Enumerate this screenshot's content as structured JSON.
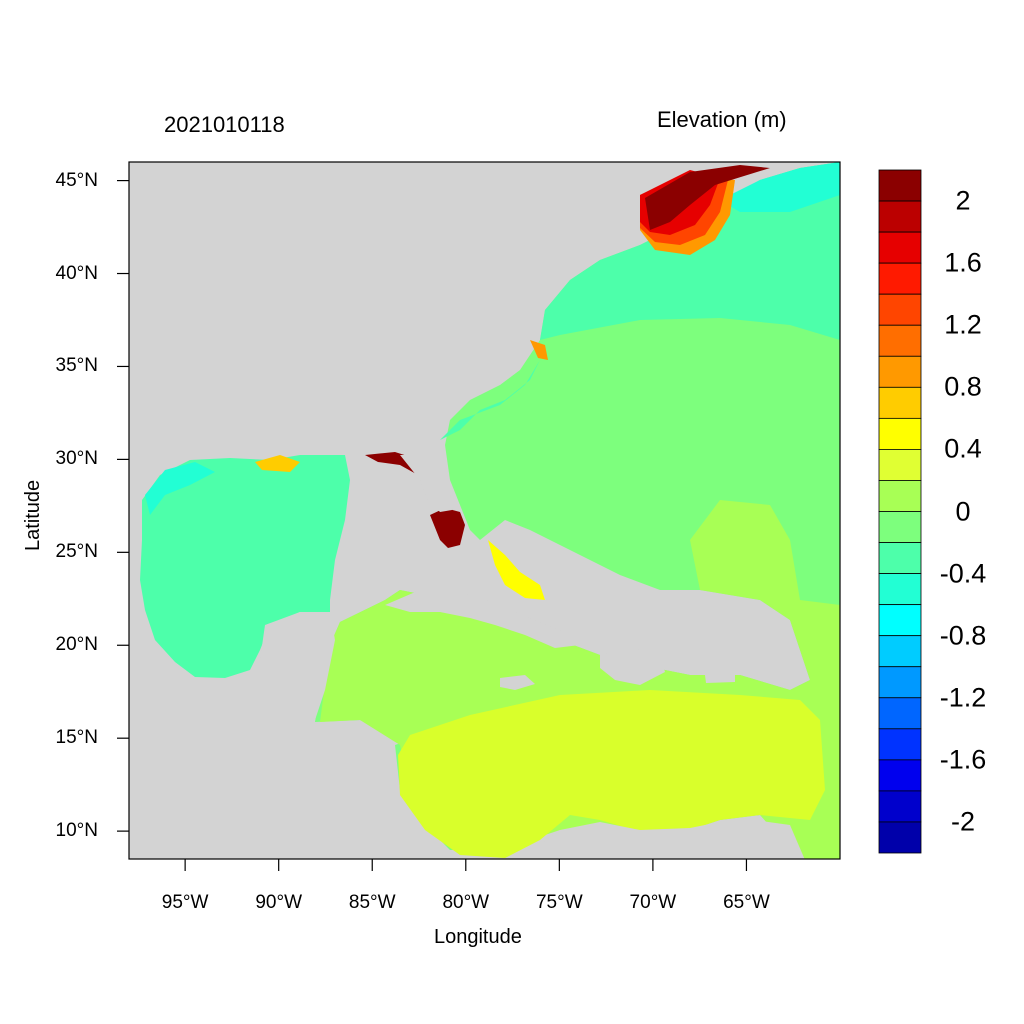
{
  "map": {
    "date": "2021010118",
    "variable": "Elevation (m)",
    "x_title": "Longitude",
    "y_title": "Latitude",
    "lat_ticks": [
      "45°N",
      "40°N",
      "35°N",
      "30°N",
      "25°N",
      "20°N",
      "15°N",
      "10°N"
    ],
    "lat_values": [
      45,
      40,
      35,
      30,
      25,
      20,
      15,
      10
    ],
    "lon_ticks": [
      "95°W",
      "90°W",
      "85°W",
      "80°W",
      "75°W",
      "70°W",
      "65°W"
    ],
    "lon_values": [
      -95,
      -90,
      -85,
      -80,
      -75,
      -70,
      -65
    ],
    "extent": {
      "lon_min": -98,
      "lon_max": -60,
      "lat_min": 8.5,
      "lat_max": 46
    },
    "land_color": "#d3d3d3"
  },
  "colorbar": {
    "labels": [
      "2",
      "1.6",
      "1.2",
      "0.8",
      "0.4",
      "0",
      "-0.4",
      "-0.8",
      "-1.2",
      "-1.6",
      "-2"
    ],
    "colors": [
      "#8b0000",
      "#bb0000",
      "#e60000",
      "#ff1a00",
      "#ff4500",
      "#ff6e00",
      "#ff9900",
      "#ffcc00",
      "#ffff00",
      "#e0ff33",
      "#a8ff55",
      "#7dff7d",
      "#4dffaa",
      "#22ffd4",
      "#00ffff",
      "#00ccff",
      "#0099ff",
      "#0066ff",
      "#0033ff",
      "#0000ee",
      "#0000cc",
      "#0000aa"
    ]
  }
}
